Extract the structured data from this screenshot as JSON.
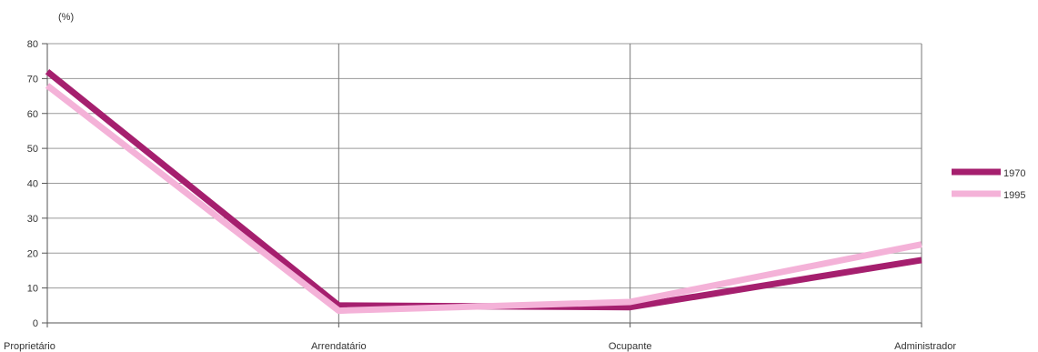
{
  "chart_data": {
    "type": "line",
    "title": "",
    "ylabel": "(%)",
    "xlabel": "",
    "categories": [
      "Proprietário",
      "Arrendatário",
      "Ocupante",
      "Administrador"
    ],
    "ylim": [
      0,
      80
    ],
    "yticks": [
      0,
      10,
      20,
      30,
      40,
      50,
      60,
      70,
      80
    ],
    "grid": "both",
    "legend_position": "right",
    "series": [
      {
        "name": "1970",
        "color": "#a51f6e",
        "values": [
          72,
          5,
          4.5,
          18
        ]
      },
      {
        "name": "1995",
        "color": "#f4b2d8",
        "values": [
          68,
          3.5,
          6,
          22.5
        ]
      }
    ]
  }
}
